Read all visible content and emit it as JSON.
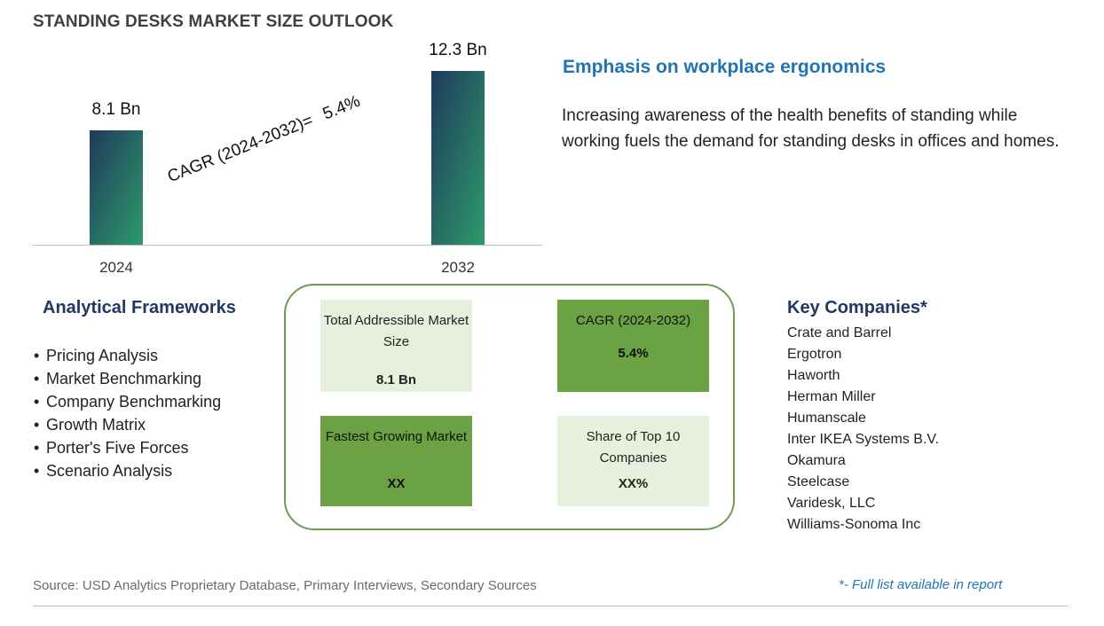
{
  "title": "STANDING DESKS MARKET SIZE OUTLOOK",
  "chart_data": {
    "type": "bar",
    "categories": [
      "2024",
      "2032"
    ],
    "values": [
      8.1,
      12.3
    ],
    "value_labels": [
      "8.1 Bn",
      "12.3 Bn"
    ],
    "annotation": {
      "label": "CAGR (2024-2032)=",
      "value": "5.4%"
    },
    "bar_colors": [
      "#2e9a6b",
      "#1f3a5c"
    ],
    "ylim": [
      0,
      12.3
    ],
    "grid": false
  },
  "emphasis": {
    "title": "Emphasis on workplace ergonomics",
    "text": "Increasing awareness of the health benefits of standing while working fuels the demand for standing desks in offices and homes."
  },
  "frameworks": {
    "title": "Analytical Frameworks",
    "items": [
      "Pricing Analysis",
      "Market Benchmarking",
      "Company Benchmarking",
      "Growth Matrix",
      "Porter's Five Forces",
      "Scenario Analysis"
    ]
  },
  "metrics": {
    "tam": {
      "label": "Total Addressible Market Size",
      "value": "8.1 Bn"
    },
    "cagr": {
      "label": "CAGR (2024-2032)",
      "value": "5.4%"
    },
    "fgm": {
      "label": "Fastest Growing Market",
      "value": "XX"
    },
    "share": {
      "label": "Share of Top 10 Companies",
      "value": "XX%"
    }
  },
  "companies": {
    "title": "Key Companies*",
    "items": [
      "Crate and Barrel",
      "Ergotron",
      "Haworth",
      "Herman Miller",
      "Humanscale",
      "Inter IKEA Systems B.V.",
      "Okamura",
      "Steelcase",
      "Varidesk, LLC",
      "Williams-Sonoma Inc"
    ]
  },
  "footer": {
    "source": "Source: USD Analytics Proprietary Database, Primary Interviews, Secondary Sources",
    "footnote": "*- Full list available in report"
  },
  "colors": {
    "accent_blue": "#1f75b4",
    "navy": "#1f3864",
    "green_dark": "#6aa244",
    "green_light": "#e6f0dc",
    "box_border": "#6f9a56"
  }
}
